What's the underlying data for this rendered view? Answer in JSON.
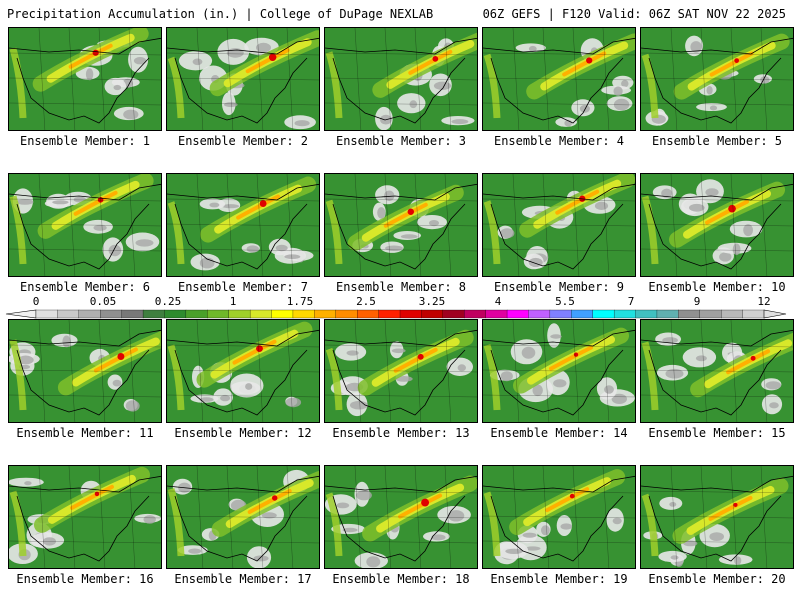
{
  "header": {
    "left_title": "Precipitation Accumulation (in.) | College of DuPage NEXLAB",
    "right_title": "06Z GEFS | F120 Valid: 06Z SAT NOV 22 2025"
  },
  "panels": [
    {
      "label": "Ensemble Member: 1"
    },
    {
      "label": "Ensemble Member: 2"
    },
    {
      "label": "Ensemble Member: 3"
    },
    {
      "label": "Ensemble Member: 4"
    },
    {
      "label": "Ensemble Member: 5"
    },
    {
      "label": "Ensemble Member: 6"
    },
    {
      "label": "Ensemble Member: 7"
    },
    {
      "label": "Ensemble Member: 8"
    },
    {
      "label": "Ensemble Member: 9"
    },
    {
      "label": "Ensemble Member: 10"
    },
    {
      "label": "Ensemble Member: 11"
    },
    {
      "label": "Ensemble Member: 12"
    },
    {
      "label": "Ensemble Member: 13"
    },
    {
      "label": "Ensemble Member: 14"
    },
    {
      "label": "Ensemble Member: 15"
    },
    {
      "label": "Ensemble Member: 16"
    },
    {
      "label": "Ensemble Member: 17"
    },
    {
      "label": "Ensemble Member: 18"
    },
    {
      "label": "Ensemble Member: 19"
    },
    {
      "label": "Ensemble Member: 20"
    }
  ],
  "colorbar": {
    "tick_labels": [
      "0",
      "0.05",
      "0.25",
      "1",
      "1.75",
      "2.5",
      "3.25",
      "4",
      "5.5",
      "7",
      "9",
      "12"
    ],
    "colors": [
      "#e0e0e0",
      "#c8c8c8",
      "#b0b0b0",
      "#909090",
      "#787878",
      "#3f7f3f",
      "#2e8b2e",
      "#4aa02a",
      "#6fb82a",
      "#9fcf2a",
      "#d8e82a",
      "#ffff00",
      "#ffd800",
      "#ffb000",
      "#ff8c00",
      "#ff6000",
      "#ff2000",
      "#e00000",
      "#c00000",
      "#a00020",
      "#c00060",
      "#e000a0",
      "#ff00ff",
      "#c060ff",
      "#8080ff",
      "#40a0ff",
      "#00ffff",
      "#20e0e0",
      "#40c0c0",
      "#60b0b0",
      "#909090",
      "#a0a0a0",
      "#b8b8b8",
      "#d0d0d0"
    ]
  }
}
